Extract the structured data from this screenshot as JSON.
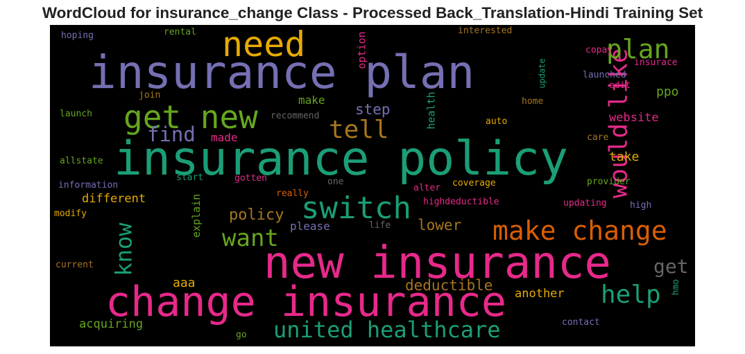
{
  "title": "WordCloud for insurance_change Class - Processed Back_Translation-Hindi Training Set",
  "words": [
    {
      "text": "insurance plan",
      "color": "#7570b3"
    },
    {
      "text": "insurance policy",
      "color": "#1b9e77"
    },
    {
      "text": "new insurance",
      "color": "#e7298a"
    },
    {
      "text": "change insurance",
      "color": "#e7298a"
    },
    {
      "text": "need",
      "color": "#e6ab02"
    },
    {
      "text": "get new",
      "color": "#66a61e"
    },
    {
      "text": "switch",
      "color": "#1b9e77"
    },
    {
      "text": "make change",
      "color": "#d95f02"
    },
    {
      "text": "would like",
      "color": "#e7298a"
    },
    {
      "text": "plan",
      "color": "#66a61e"
    },
    {
      "text": "tell",
      "color": "#a6761d"
    },
    {
      "text": "find",
      "color": "#7570b3"
    },
    {
      "text": "want",
      "color": "#66a61e"
    },
    {
      "text": "know",
      "color": "#1b9e77"
    },
    {
      "text": "help",
      "color": "#1b9e77"
    },
    {
      "text": "get",
      "color": "#666666"
    },
    {
      "text": "united healthcare",
      "color": "#1b9e77"
    },
    {
      "text": "policy",
      "color": "#a6761d"
    },
    {
      "text": "lower",
      "color": "#a6761d"
    },
    {
      "text": "deductible",
      "color": "#a6761d"
    },
    {
      "text": "step",
      "color": "#7570b3"
    },
    {
      "text": "make",
      "color": "#66a61e"
    },
    {
      "text": "made",
      "color": "#e7298a"
    },
    {
      "text": "website",
      "color": "#e7298a"
    },
    {
      "text": "take",
      "color": "#e6ab02"
    },
    {
      "text": "ppo",
      "color": "#66a61e"
    },
    {
      "text": "different",
      "color": "#e6ab02"
    },
    {
      "text": "aaa",
      "color": "#e6ab02"
    },
    {
      "text": "acquiring",
      "color": "#66a61e"
    },
    {
      "text": "another",
      "color": "#e6ab02"
    },
    {
      "text": "please",
      "color": "#7570b3"
    },
    {
      "text": "explain",
      "color": "#66a61e"
    },
    {
      "text": "health",
      "color": "#1b9e77"
    },
    {
      "text": "option",
      "color": "#e7298a"
    },
    {
      "text": "hoping",
      "color": "#7570b3"
    },
    {
      "text": "rental",
      "color": "#66a61e"
    },
    {
      "text": "interested",
      "color": "#a6761d"
    },
    {
      "text": "copay",
      "color": "#e7298a"
    },
    {
      "text": "insurace",
      "color": "#e7298a"
    },
    {
      "text": "launched",
      "color": "#7570b3"
    },
    {
      "text": "edit",
      "color": "#e7298a"
    },
    {
      "text": "update",
      "color": "#1b9e77"
    },
    {
      "text": "join",
      "color": "#a6761d"
    },
    {
      "text": "home",
      "color": "#a6761d"
    },
    {
      "text": "launch",
      "color": "#66a61e"
    },
    {
      "text": "recommend",
      "color": "#666666"
    },
    {
      "text": "auto",
      "color": "#e6ab02"
    },
    {
      "text": "care",
      "color": "#a6761d"
    },
    {
      "text": "allstate",
      "color": "#66a61e"
    },
    {
      "text": "information",
      "color": "#7570b3"
    },
    {
      "text": "start",
      "color": "#1b9e77"
    },
    {
      "text": "gotten",
      "color": "#e7298a"
    },
    {
      "text": "one",
      "color": "#666666"
    },
    {
      "text": "alter",
      "color": "#e7298a"
    },
    {
      "text": "coverage",
      "color": "#e6ab02"
    },
    {
      "text": "provider",
      "color": "#66a61e"
    },
    {
      "text": "really",
      "color": "#d95f02"
    },
    {
      "text": "highdeductible",
      "color": "#e7298a"
    },
    {
      "text": "updating",
      "color": "#e7298a"
    },
    {
      "text": "high",
      "color": "#7570b3"
    },
    {
      "text": "modify",
      "color": "#e6ab02"
    },
    {
      "text": "life",
      "color": "#666666"
    },
    {
      "text": "current",
      "color": "#a6761d"
    },
    {
      "text": "hmo",
      "color": "#1b9e77"
    },
    {
      "text": "contact",
      "color": "#7570b3"
    },
    {
      "text": "go",
      "color": "#66a61e"
    }
  ]
}
